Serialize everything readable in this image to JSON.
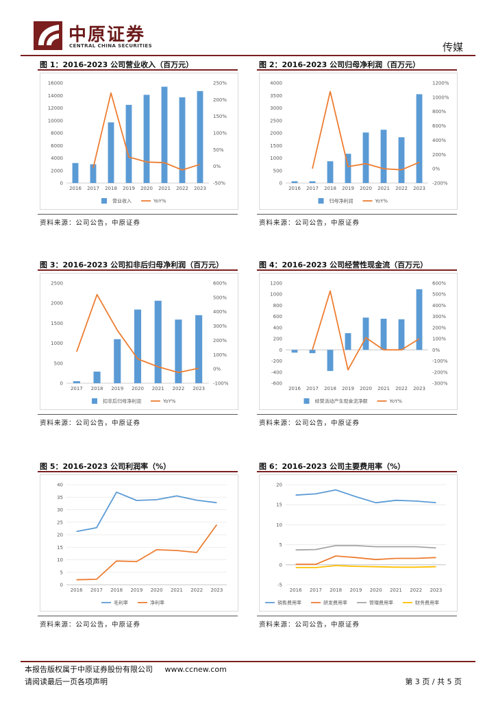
{
  "header": {
    "company_cn": "中原证券",
    "company_en": "CENTRAL CHINA SECURITIES",
    "sector": "传媒"
  },
  "source_text": "资料来源：公司公告，中原证券",
  "footer": {
    "copyright": "本报告版权属于中原证券股份有限公司",
    "website": "www.ccnew.com",
    "notice": "请阅读最后一页各项声明",
    "page": "第 3 页 / 共 5 页"
  },
  "colors": {
    "bar": "#5b9bd5",
    "line": "#ed7d31",
    "gray": "#a5a5a5",
    "yellow": "#ffc000",
    "brand": "#7a1e1e"
  },
  "chart_data": [
    {
      "id": "fig1",
      "title": "图 1：2016-2023 公司营业收入（百万元）",
      "type": "bar+line",
      "categories": [
        "2016",
        "2017",
        "2018",
        "2019",
        "2020",
        "2021",
        "2022",
        "2023"
      ],
      "series": [
        {
          "name": "营业收入",
          "kind": "bar",
          "axis": "left",
          "values": [
            3200,
            3000,
            9700,
            12500,
            14100,
            15400,
            13700,
            14700
          ]
        },
        {
          "name": "YoY%",
          "kind": "line",
          "axis": "right",
          "values": [
            null,
            -5,
            220,
            28,
            13,
            11,
            -11,
            6
          ]
        }
      ],
      "left_axis": {
        "min": 0,
        "max": 16000,
        "ticks": [
          "0",
          "2000",
          "4000",
          "6000",
          "8000",
          "10000",
          "12000",
          "14000",
          "16000"
        ]
      },
      "right_axis": {
        "min": -50,
        "max": 250,
        "ticks": [
          "-50%",
          "0%",
          "50%",
          "100%",
          "150%",
          "200%",
          "250%"
        ]
      }
    },
    {
      "id": "fig2",
      "title": "图 2：2016-2023 公司归母净利润（百万元）",
      "type": "bar+line",
      "categories": [
        "2016",
        "2017",
        "2018",
        "2019",
        "2020",
        "2021",
        "2022",
        "2023"
      ],
      "series": [
        {
          "name": "归母净利润",
          "kind": "bar",
          "axis": "left",
          "values": [
            70,
            70,
            870,
            1170,
            2020,
            2130,
            1830,
            3550
          ]
        },
        {
          "name": "YoY%",
          "kind": "line",
          "axis": "right",
          "values": [
            null,
            0,
            1080,
            30,
            70,
            0,
            -15,
            90
          ]
        }
      ],
      "left_axis": {
        "min": 0,
        "max": 4000,
        "ticks": [
          "0",
          "500",
          "1000",
          "1500",
          "2000",
          "2500",
          "3000",
          "3500",
          "4000"
        ]
      },
      "right_axis": {
        "min": -200,
        "max": 1200,
        "ticks": [
          "-200%",
          "0%",
          "200%",
          "400%",
          "600%",
          "800%",
          "1000%",
          "1200%"
        ]
      }
    },
    {
      "id": "fig3",
      "title": "图 3：2016-2023 公司扣非后归母净利润（百万元）",
      "type": "bar+line",
      "categories": [
        "2017",
        "2018",
        "2019",
        "2020",
        "2021",
        "2022",
        "2023"
      ],
      "series": [
        {
          "name": "扣非后归母净利润",
          "kind": "bar",
          "axis": "left",
          "values": [
            50,
            290,
            1100,
            1840,
            2060,
            1590,
            1700
          ]
        },
        {
          "name": "YoY%",
          "kind": "line",
          "axis": "right",
          "values": [
            120,
            520,
            270,
            70,
            15,
            -25,
            5
          ]
        }
      ],
      "left_axis": {
        "min": 0,
        "max": 2500,
        "ticks": [
          "0",
          "500",
          "1000",
          "1500",
          "2000",
          "2500"
        ]
      },
      "right_axis": {
        "min": -100,
        "max": 600,
        "ticks": [
          "-100%",
          "0%",
          "100%",
          "200%",
          "300%",
          "400%",
          "500%",
          "600%"
        ]
      }
    },
    {
      "id": "fig4",
      "title": "图 4：2016-2023 公司经营性现金流（百万元）",
      "type": "bar+line",
      "categories": [
        "2016",
        "2017",
        "2018",
        "2019",
        "2020",
        "2021",
        "2022",
        "2023"
      ],
      "series": [
        {
          "name": "经营活动产生现金流净额",
          "kind": "bar",
          "axis": "left",
          "values": [
            -50,
            -60,
            -380,
            300,
            580,
            560,
            550,
            1090
          ]
        },
        {
          "name": "YoY%",
          "kind": "line",
          "axis": "right",
          "values": [
            null,
            0,
            530,
            -180,
            110,
            0,
            0,
            100
          ]
        }
      ],
      "left_axis": {
        "min": -600,
        "max": 1200,
        "ticks": [
          "-600",
          "-400",
          "-200",
          "0",
          "200",
          "400",
          "600",
          "800",
          "1000",
          "1200"
        ]
      },
      "right_axis": {
        "min": -300,
        "max": 600,
        "ticks": [
          "-300%",
          "-200%",
          "-100%",
          "0%",
          "100%",
          "200%",
          "300%",
          "400%",
          "500%",
          "600%"
        ]
      }
    },
    {
      "id": "fig5",
      "title": "图 5：2016-2023 公司利润率（%）",
      "type": "line",
      "categories": [
        "2016",
        "2017",
        "2018",
        "2019",
        "2020",
        "2021",
        "2022",
        "2023"
      ],
      "series": [
        {
          "name": "毛利率",
          "kind": "line",
          "values": [
            21.3,
            22.8,
            37.0,
            33.7,
            34.0,
            35.5,
            33.8,
            32.8
          ]
        },
        {
          "name": "净利率",
          "kind": "line",
          "values": [
            2.0,
            2.2,
            9.5,
            9.3,
            14.0,
            13.7,
            12.9,
            24.0
          ]
        }
      ],
      "left_axis": {
        "min": 0,
        "max": 40,
        "ticks": [
          "0",
          "5",
          "10",
          "15",
          "20",
          "25",
          "30",
          "35",
          "40"
        ]
      }
    },
    {
      "id": "fig6",
      "title": "图 6：2016-2023 公司主要费用率（%）",
      "type": "line",
      "categories": [
        "2016",
        "2017",
        "2018",
        "2019",
        "2020",
        "2021",
        "2022",
        "2023"
      ],
      "series": [
        {
          "name": "销售费用率",
          "kind": "line",
          "values": [
            17.4,
            17.7,
            18.7,
            17.0,
            15.5,
            16.1,
            15.9,
            15.5
          ]
        },
        {
          "name": "研发费用率",
          "kind": "line",
          "values": [
            0.1,
            0.1,
            2.2,
            1.8,
            1.3,
            1.6,
            1.6,
            1.8
          ]
        },
        {
          "name": "管理费用率",
          "kind": "line",
          "values": [
            3.7,
            3.8,
            4.8,
            4.8,
            4.5,
            4.5,
            4.5,
            4.2
          ]
        },
        {
          "name": "财务费用率",
          "kind": "line",
          "values": [
            -0.7,
            -0.7,
            -0.2,
            -0.4,
            -0.5,
            -0.6,
            -0.6,
            -0.5
          ]
        }
      ],
      "left_axis": {
        "min": -5,
        "max": 20,
        "ticks": [
          "-5",
          "0",
          "5",
          "10",
          "15",
          "20"
        ]
      }
    }
  ]
}
